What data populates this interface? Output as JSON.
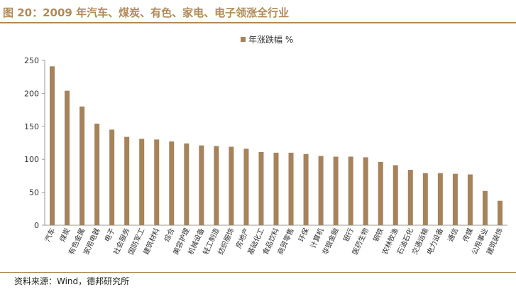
{
  "figure": {
    "title": "图 20：2009 年汽车、煤炭、有色、家电、电子领涨全行业",
    "source": "资料来源：Wind，德邦研究所"
  },
  "chart_data": {
    "type": "bar",
    "title": "",
    "xlabel": "",
    "ylabel": "",
    "ylim": [
      0,
      250
    ],
    "yticks": [
      0,
      50,
      100,
      150,
      200,
      250
    ],
    "grid": false,
    "legend_position": "top-center",
    "bar_color": "#a6835a",
    "series": [
      {
        "name": "年涨跌幅 %",
        "values": [
          241,
          204,
          180,
          154,
          145,
          134,
          131,
          130,
          127,
          124,
          121,
          120,
          119,
          116,
          111,
          110,
          110,
          108,
          105,
          104,
          104,
          103,
          96,
          91,
          84,
          79,
          79,
          78,
          77,
          52,
          37
        ]
      }
    ],
    "categories": [
      "汽车",
      "煤炭",
      "有色金属",
      "家用电器",
      "电子",
      "社会服务",
      "国防军工",
      "建筑材料",
      "综合",
      "美容护理",
      "机械设备",
      "轻工制造",
      "纺织服饰",
      "房地产",
      "基础化工",
      "食品饮料",
      "商贸零售",
      "环保",
      "计算机",
      "非银金融",
      "银行",
      "医药生物",
      "钢铁",
      "农林牧渔",
      "石油石化",
      "交通运输",
      "电力设备",
      "通信",
      "传媒",
      "公用事业",
      "建筑装饰"
    ]
  }
}
